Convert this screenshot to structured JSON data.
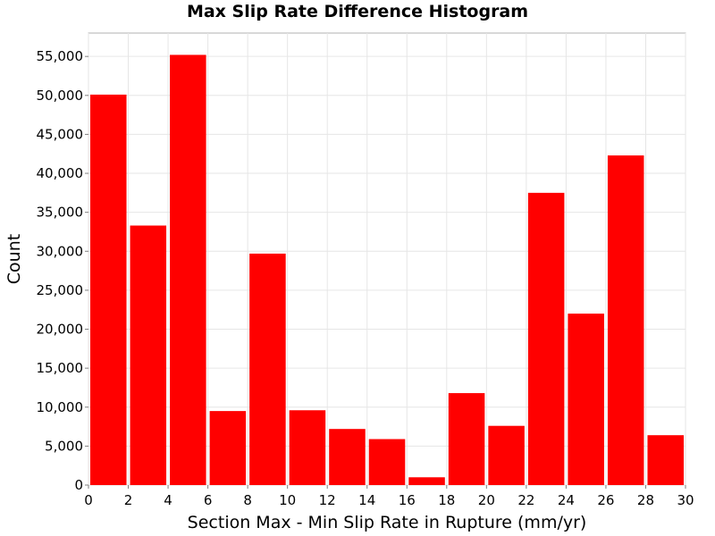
{
  "chart_data": {
    "type": "bar",
    "title": "Max Slip Rate Difference Histogram",
    "xlabel": "Section Max - Min Slip Rate in Rupture (mm/yr)",
    "ylabel": "Count",
    "bin_width": 2,
    "bin_starts": [
      0,
      2,
      4,
      6,
      8,
      10,
      12,
      14,
      16,
      18,
      20,
      22,
      24,
      26,
      28
    ],
    "values": [
      50100,
      33300,
      55200,
      9500,
      29700,
      9600,
      7200,
      5900,
      1000,
      11800,
      7600,
      37500,
      22000,
      42300,
      6400
    ],
    "xlim": [
      0,
      30
    ],
    "ylim": [
      0,
      58000
    ],
    "x_ticks": [
      "0",
      "2",
      "4",
      "6",
      "8",
      "10",
      "12",
      "14",
      "16",
      "18",
      "20",
      "22",
      "24",
      "26",
      "28",
      "30"
    ],
    "y_ticks": [
      "0",
      "5,000",
      "10,000",
      "15,000",
      "20,000",
      "25,000",
      "30,000",
      "35,000",
      "40,000",
      "45,000",
      "50,000",
      "55,000"
    ],
    "grid": true,
    "bar_color": "#ff0000"
  }
}
